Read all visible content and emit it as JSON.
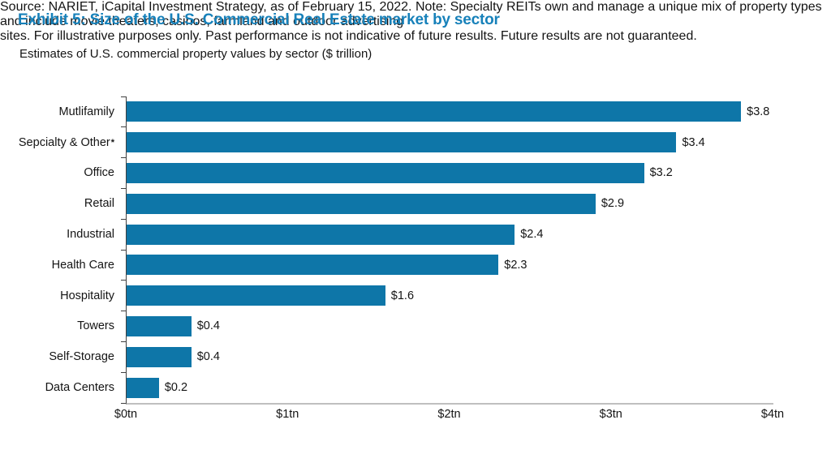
{
  "header": {
    "title": "Exhibit 5: Size of the U.S. Commercial Real Estate market by sector",
    "subtitle": "Estimates of U.S. commercial property values by sector ($ trillion)"
  },
  "chart_data": {
    "type": "bar",
    "orientation": "horizontal",
    "title": "Estimates of U.S. commercial property values by sector ($ trillion)",
    "categories": [
      "Mutlifamily",
      "Sepcialty & Other*",
      "Office",
      "Retail",
      "Industrial",
      "Health Care",
      "Hospitality",
      "Towers",
      "Self-Storage",
      "Data Centers"
    ],
    "values": [
      3.8,
      3.4,
      3.2,
      2.9,
      2.4,
      2.3,
      1.6,
      0.4,
      0.4,
      0.2
    ],
    "value_labels": [
      "$3.8",
      "$3.4",
      "$3.2",
      "$2.9",
      "$2.4",
      "$2.3",
      "$1.6",
      "$0.4",
      "$0.4",
      "$0.2"
    ],
    "x_tick_labels": [
      "$0tn",
      "$1tn",
      "$2tn",
      "$3tn",
      "$4tn"
    ],
    "xlim": [
      0,
      4
    ],
    "xlabel": "",
    "ylabel": "",
    "grid": false,
    "legend": "none",
    "bar_color": "#0e76a8"
  },
  "colors": {
    "title_blue": "#1781ba",
    "bar_blue": "#0e76a8",
    "y_axis_line": "#404040",
    "x_axis_line": "#bfbfbf"
  },
  "footer": {
    "source_lines": [
      "Source: NARIET, iCapital Investment Strategy, as of February 15, 2022. Note: Specialty REITs own and manage a unique mix of property types and include movie theaters, casinos, farmland and outdoor advertising",
      "sites. For illustrative purposes only. Past performance is not indicative of future results. Future results are not guaranteed."
    ]
  }
}
